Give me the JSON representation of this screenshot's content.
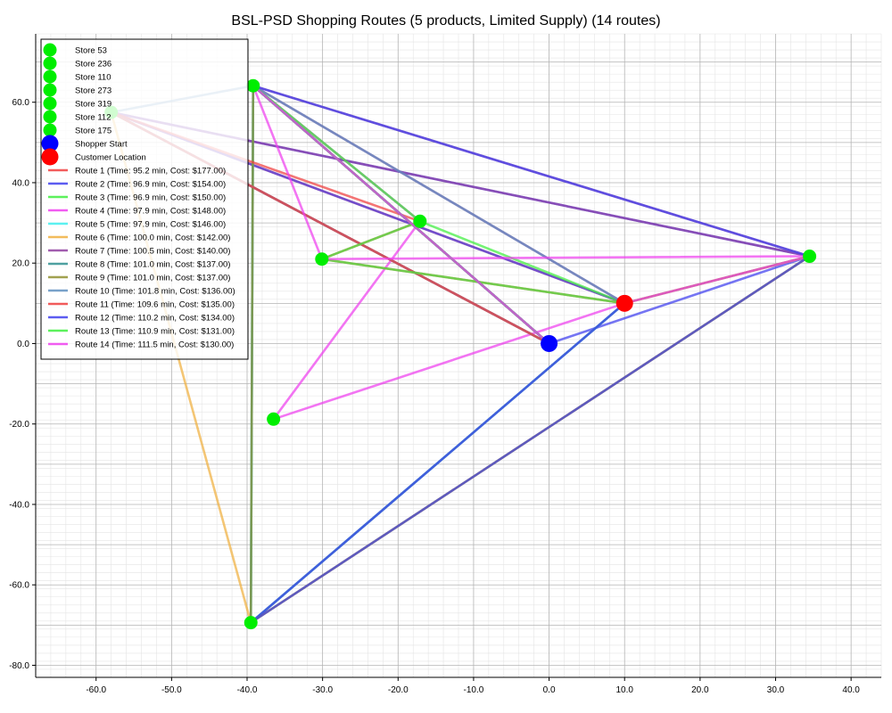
{
  "chart_data": {
    "type": "scatter",
    "title": "BSL-PSD Shopping Routes (5 products, Limited Supply) (14 routes)",
    "xlabel": "",
    "ylabel": "",
    "xlim": [
      -68,
      44
    ],
    "ylim": [
      -83,
      77
    ],
    "grid": true,
    "legend_position": "top-left",
    "x_ticks": [
      -60,
      -50,
      -40,
      -30,
      -20,
      -10,
      0,
      10,
      20,
      30,
      40
    ],
    "y_ticks": [
      -80,
      -60,
      -40,
      -20,
      0,
      20,
      40,
      60
    ],
    "x_tick_labels": [
      "-60.0",
      "-50.0",
      "-40.0",
      "-30.0",
      "-20.0",
      "-10.0",
      "0.0",
      "10.0",
      "20.0",
      "30.0",
      "40.0"
    ],
    "y_tick_labels": [
      "-80.0",
      "-60.0",
      "-40.0",
      "-20.0",
      "0.0",
      "20.0",
      "40.0",
      "60.0"
    ],
    "stores": [
      {
        "name": "Store 53",
        "x": -39.2,
        "y": 64.1
      },
      {
        "name": "Store 236",
        "x": 34.5,
        "y": 21.7
      },
      {
        "name": "Store 110",
        "x": -17.1,
        "y": 30.4
      },
      {
        "name": "Store 273",
        "x": -30.1,
        "y": 21.0
      },
      {
        "name": "Store 319",
        "x": -36.5,
        "y": -18.8
      },
      {
        "name": "Store 112",
        "x": -39.5,
        "y": -69.4
      },
      {
        "name": "Store 175",
        "x": -58.0,
        "y": 57.5
      }
    ],
    "shopper_start": {
      "name": "Shopper Start",
      "x": 0.0,
      "y": 0.0,
      "color": "#0000ff"
    },
    "customer": {
      "name": "Customer Location",
      "x": 10.0,
      "y": 10.0,
      "color": "#ff0000"
    },
    "store_color": "#00ee00",
    "routes": [
      {
        "name": "Route 1 (Time: 95.2 min, Cost: $177.00)",
        "color": "#f04040",
        "path": [
          [
            0,
            0
          ],
          [
            -58,
            57.5
          ],
          [
            10,
            10
          ]
        ]
      },
      {
        "name": "Route 2 (Time: 96.9 min, Cost: $154.00)",
        "color": "#4040ee",
        "path": [
          [
            0,
            0
          ],
          [
            34.5,
            21.7
          ],
          [
            -58,
            57.5
          ],
          [
            10,
            10
          ]
        ]
      },
      {
        "name": "Route 3 (Time: 96.9 min, Cost: $150.00)",
        "color": "#40ee40",
        "path": [
          [
            0,
            0
          ],
          [
            -39.2,
            64.1
          ],
          [
            -17.1,
            30.4
          ],
          [
            10,
            10
          ]
        ]
      },
      {
        "name": "Route 4 (Time: 97.9 min, Cost: $148.00)",
        "color": "#ee40ee",
        "path": [
          [
            0,
            0
          ],
          [
            -39.2,
            64.1
          ],
          [
            -17.1,
            30.4
          ],
          [
            -36.5,
            -18.8
          ],
          [
            10,
            10
          ]
        ]
      },
      {
        "name": "Route 5 (Time: 97.9 min, Cost: $146.00)",
        "color": "#40eeee",
        "path": [
          [
            0,
            0
          ],
          [
            -39.2,
            64.1
          ],
          [
            -39.5,
            -69.4
          ],
          [
            10,
            10
          ]
        ]
      },
      {
        "name": "Route 6 (Time: 100.0 min, Cost: $142.00)",
        "color": "#f0b040",
        "path": [
          [
            0,
            0
          ],
          [
            -58,
            57.5
          ],
          [
            -39.5,
            -69.4
          ],
          [
            34.5,
            21.7
          ],
          [
            10,
            10
          ]
        ]
      },
      {
        "name": "Route 7 (Time: 100.5 min, Cost: $140.00)",
        "color": "#9040a0",
        "path": [
          [
            0,
            0
          ],
          [
            -58,
            57.5
          ],
          [
            34.5,
            21.7
          ],
          [
            -39.2,
            64.1
          ],
          [
            10,
            10
          ]
        ]
      },
      {
        "name": "Route 8 (Time: 101.0 min, Cost: $137.00)",
        "color": "#309090",
        "path": [
          [
            0,
            0
          ],
          [
            -39.2,
            64.1
          ],
          [
            -39.5,
            -69.4
          ],
          [
            10,
            10
          ]
        ]
      },
      {
        "name": "Route 9 (Time: 101.0 min, Cost: $137.00)",
        "color": "#909030",
        "path": [
          [
            0,
            0
          ],
          [
            -39.2,
            64.1
          ],
          [
            -39.5,
            -69.4
          ],
          [
            34.5,
            21.7
          ],
          [
            10,
            10
          ]
        ]
      },
      {
        "name": "Route 10 (Time: 101.8 min, Cost: $136.00)",
        "color": "#6090c0",
        "path": [
          [
            0,
            0
          ],
          [
            -58,
            57.5
          ],
          [
            -39.2,
            64.1
          ],
          [
            10,
            10
          ]
        ]
      },
      {
        "name": "Route 11 (Time: 109.6 min, Cost: $135.00)",
        "color": "#f04040",
        "path": [
          [
            0,
            0
          ],
          [
            -58,
            57.5
          ],
          [
            -17.1,
            30.4
          ],
          [
            -30.1,
            21.0
          ],
          [
            10,
            10
          ]
        ]
      },
      {
        "name": "Route 12 (Time: 110.2 min, Cost: $134.00)",
        "color": "#4040ee",
        "path": [
          [
            0,
            0
          ],
          [
            -39.2,
            64.1
          ],
          [
            34.5,
            21.7
          ],
          [
            -39.5,
            -69.4
          ],
          [
            10,
            10
          ]
        ]
      },
      {
        "name": "Route 13 (Time: 110.9 min, Cost: $131.00)",
        "color": "#40ee40",
        "path": [
          [
            0,
            0
          ],
          [
            -39.2,
            64.1
          ],
          [
            -17.1,
            30.4
          ],
          [
            -30.1,
            21.0
          ],
          [
            10,
            10
          ]
        ]
      },
      {
        "name": "Route 14 (Time: 111.5 min, Cost: $130.00)",
        "color": "#ee40ee",
        "path": [
          [
            0,
            0
          ],
          [
            -39.2,
            64.1
          ],
          [
            -30.1,
            21.0
          ],
          [
            34.5,
            21.7
          ],
          [
            10,
            10
          ]
        ]
      }
    ]
  }
}
